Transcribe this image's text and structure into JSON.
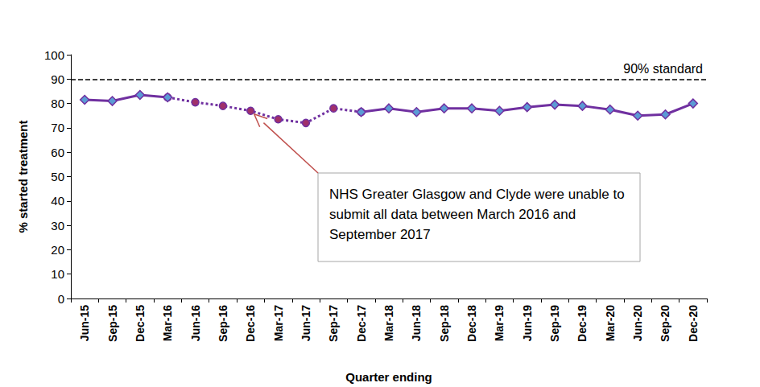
{
  "chart_data": {
    "type": "line",
    "x_label": "Quarter ending",
    "y_label": "% started treatment",
    "categories": [
      "Jun-15",
      "Sep-15",
      "Dec-15",
      "Mar-16",
      "Jun-16",
      "Sep-16",
      "Dec-16",
      "Mar-17",
      "Jun-17",
      "Sep-17",
      "Dec-17",
      "Mar-18",
      "Jun-18",
      "Sep-18",
      "Dec-18",
      "Mar-19",
      "Jun-19",
      "Sep-19",
      "Dec-19",
      "Mar-20",
      "Jun-20",
      "Sep-20",
      "Dec-20"
    ],
    "series": [
      {
        "color": "#7030a0",
        "line_style": "solid",
        "marker": "diamond",
        "values": [
          81.5,
          81,
          83.5,
          82.5,
          null,
          null,
          null,
          null,
          null,
          null,
          76.5,
          78,
          76.5,
          78,
          78,
          77,
          78.5,
          79.5,
          79,
          77.5,
          75,
          75.5,
          80
        ]
      },
      {
        "color": "#7030a0",
        "line_style": "dotted",
        "marker": "circle",
        "values": [
          null,
          null,
          null,
          82.5,
          80.5,
          79,
          77,
          73.5,
          72,
          78,
          76.5,
          null,
          null,
          null,
          null,
          null,
          null,
          null,
          null,
          null,
          null,
          null,
          null
        ]
      }
    ],
    "reference_line": {
      "y": 90,
      "label": "90% standard",
      "line_style": "dashed",
      "color": "#000000"
    },
    "annotation": {
      "text": "NHS Greater Glasgow and Clyde were unable to submit all data between March 2016 and September 2017",
      "x": "Dec-16",
      "y": 77,
      "color": "#c0504d"
    },
    "ylim": [
      0,
      100
    ],
    "yticks": [
      0,
      10,
      20,
      30,
      40,
      50,
      60,
      70,
      80,
      90,
      100
    ],
    "grid": false
  }
}
